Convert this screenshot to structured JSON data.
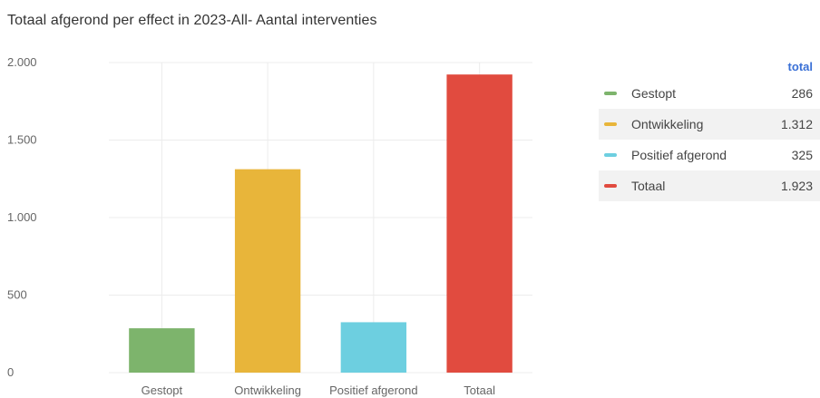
{
  "chart_data": {
    "type": "bar",
    "title": "Totaal afgerond per effect in 2023-All- Aantal interventies",
    "xlabel": "",
    "ylabel": "",
    "categories": [
      "Gestopt",
      "Ontwikkeling",
      "Positief afgerond",
      "Totaal"
    ],
    "values": [
      286,
      1312,
      325,
      1923
    ],
    "colors": [
      "#7db46c",
      "#e8b53a",
      "#6dcfe0",
      "#e14b3f"
    ],
    "ylim": [
      0,
      2000
    ],
    "yticks": [
      0,
      500,
      1000,
      1500,
      2000
    ],
    "ytick_labels": [
      "0",
      "500",
      "1.000",
      "1.500",
      "2.000"
    ],
    "grid": true,
    "legend_position": "right"
  },
  "legend": {
    "column_header": "total",
    "items": [
      {
        "name": "Gestopt",
        "value": "286",
        "color": "#7db46c"
      },
      {
        "name": "Ontwikkeling",
        "value": "1.312",
        "color": "#e8b53a"
      },
      {
        "name": "Positief afgerond",
        "value": "325",
        "color": "#6dcfe0"
      },
      {
        "name": "Totaal",
        "value": "1.923",
        "color": "#e14b3f"
      }
    ]
  }
}
